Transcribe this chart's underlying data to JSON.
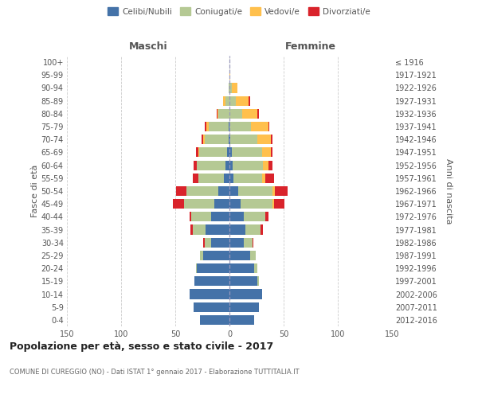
{
  "age_groups": [
    "0-4",
    "5-9",
    "10-14",
    "15-19",
    "20-24",
    "25-29",
    "30-34",
    "35-39",
    "40-44",
    "45-49",
    "50-54",
    "55-59",
    "60-64",
    "65-69",
    "70-74",
    "75-79",
    "80-84",
    "85-89",
    "90-94",
    "95-99",
    "100+"
  ],
  "birth_years": [
    "2012-2016",
    "2007-2011",
    "2002-2006",
    "1997-2001",
    "1992-1996",
    "1987-1991",
    "1982-1986",
    "1977-1981",
    "1972-1976",
    "1967-1971",
    "1962-1966",
    "1957-1961",
    "1952-1956",
    "1947-1951",
    "1942-1946",
    "1937-1941",
    "1932-1936",
    "1927-1931",
    "1922-1926",
    "1917-1921",
    "≤ 1916"
  ],
  "maschi": {
    "celibi": [
      27,
      33,
      37,
      32,
      30,
      24,
      17,
      22,
      17,
      14,
      10,
      5,
      4,
      2,
      1,
      1,
      0,
      0,
      0,
      0,
      0
    ],
    "coniugati": [
      0,
      0,
      0,
      0,
      1,
      3,
      6,
      12,
      18,
      28,
      30,
      24,
      26,
      26,
      22,
      18,
      10,
      4,
      1,
      0,
      0
    ],
    "vedovi": [
      0,
      0,
      0,
      0,
      0,
      0,
      0,
      0,
      0,
      0,
      0,
      0,
      0,
      1,
      1,
      2,
      1,
      2,
      0,
      0,
      0
    ],
    "divorziati": [
      0,
      0,
      0,
      0,
      0,
      0,
      1,
      2,
      2,
      10,
      9,
      5,
      3,
      2,
      2,
      2,
      1,
      0,
      0,
      0,
      0
    ]
  },
  "femmine": {
    "nubili": [
      23,
      27,
      30,
      26,
      23,
      19,
      13,
      15,
      13,
      10,
      8,
      4,
      3,
      2,
      1,
      0,
      0,
      0,
      0,
      0,
      0
    ],
    "coniugate": [
      0,
      0,
      0,
      1,
      3,
      5,
      8,
      14,
      20,
      30,
      32,
      26,
      28,
      28,
      25,
      20,
      12,
      6,
      2,
      0,
      0
    ],
    "vedove": [
      0,
      0,
      0,
      0,
      0,
      0,
      0,
      0,
      0,
      1,
      2,
      3,
      5,
      8,
      12,
      16,
      14,
      12,
      5,
      1,
      0
    ],
    "divorziate": [
      0,
      0,
      0,
      0,
      0,
      0,
      1,
      2,
      3,
      10,
      12,
      8,
      4,
      2,
      2,
      1,
      1,
      1,
      0,
      0,
      0
    ]
  },
  "colors": {
    "celibi": "#4472a8",
    "coniugati": "#b5c994",
    "vedovi": "#ffc04d",
    "divorziati": "#d9232b"
  },
  "title": "Popolazione per età, sesso e stato civile - 2017",
  "subtitle": "COMUNE DI CUREGGIO (NO) - Dati ISTAT 1° gennaio 2017 - Elaborazione TUTTITALIA.IT",
  "xlabel_left": "Maschi",
  "xlabel_right": "Femmine",
  "ylabel_left": "Fasce di età",
  "ylabel_right": "Anni di nascita",
  "xlim": 150,
  "bg_color": "#ffffff",
  "grid_color": "#cccccc",
  "legend_labels": [
    "Celibi/Nubili",
    "Coniugati/e",
    "Vedovi/e",
    "Divorziati/e"
  ]
}
